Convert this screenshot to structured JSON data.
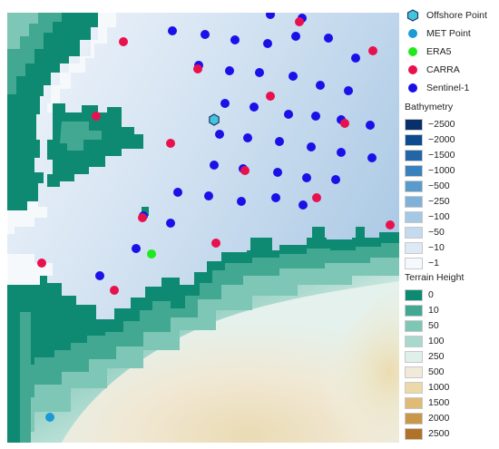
{
  "map": {
    "colors": {
      "land_low": "#0f8a72",
      "land_10": "#43a892",
      "land_50": "#7ec6b6",
      "sea_shallow": "#eef4fb",
      "sea_mid": "#c3d8ed",
      "sea_deep": "#a9c8e4",
      "sand": "#efe3c4"
    },
    "markers": {
      "sentinel1": {
        "color": "#1a10e8",
        "points": [
          [
            290,
            2
          ],
          [
            325,
            6
          ],
          [
            182,
            20
          ],
          [
            218,
            24
          ],
          [
            251,
            30
          ],
          [
            287,
            34
          ],
          [
            318,
            26
          ],
          [
            354,
            28
          ],
          [
            384,
            50
          ],
          [
            211,
            58
          ],
          [
            245,
            64
          ],
          [
            278,
            66
          ],
          [
            315,
            70
          ],
          [
            345,
            80
          ],
          [
            376,
            86
          ],
          [
            240,
            100
          ],
          [
            272,
            104
          ],
          [
            310,
            112
          ],
          [
            340,
            114
          ],
          [
            368,
            118
          ],
          [
            400,
            124
          ],
          [
            234,
            134
          ],
          [
            265,
            138
          ],
          [
            300,
            142
          ],
          [
            335,
            148
          ],
          [
            368,
            154
          ],
          [
            402,
            160
          ],
          [
            228,
            168
          ],
          [
            260,
            172
          ],
          [
            298,
            176
          ],
          [
            330,
            182
          ],
          [
            362,
            184
          ],
          [
            188,
            198
          ],
          [
            222,
            202
          ],
          [
            258,
            208
          ],
          [
            296,
            204
          ],
          [
            326,
            212
          ],
          [
            150,
            224
          ],
          [
            180,
            232
          ],
          [
            142,
            260
          ],
          [
            102,
            290
          ]
        ]
      },
      "carra": {
        "color": "#e8114e",
        "points": [
          [
            128,
            32
          ],
          [
            322,
            10
          ],
          [
            403,
            42
          ],
          [
            210,
            62
          ],
          [
            290,
            92
          ],
          [
            98,
            114
          ],
          [
            372,
            122
          ],
          [
            180,
            144
          ],
          [
            262,
            174
          ],
          [
            341,
            204
          ],
          [
            149,
            226
          ],
          [
            422,
            234
          ],
          [
            230,
            254
          ],
          [
            38,
            276
          ],
          [
            118,
            306
          ]
        ]
      },
      "era5": {
        "color": "#20e81c",
        "points": [
          [
            159,
            266
          ]
        ]
      },
      "met": {
        "color": "#1b9ad6",
        "points": [
          [
            47,
            446
          ]
        ]
      },
      "offshore": {
        "color": "#44c4dc",
        "points": [
          [
            228,
            118
          ]
        ]
      }
    }
  },
  "legend": {
    "points": [
      {
        "key": "offshore",
        "label": "Offshore Point",
        "color": "#44c4dc",
        "shape": "hexagon"
      },
      {
        "key": "met",
        "label": "MET Point",
        "color": "#1b9ad6",
        "shape": "circle"
      },
      {
        "key": "era5",
        "label": "ERA5",
        "color": "#20e81c",
        "shape": "circle"
      },
      {
        "key": "carra",
        "label": "CARRA",
        "color": "#e8114e",
        "shape": "circle"
      },
      {
        "key": "sentinel1",
        "label": "Sentinel-1",
        "color": "#1a10e8",
        "shape": "circle"
      }
    ],
    "bathymetry": {
      "title": "Bathymetry",
      "levels": [
        {
          "label": "−2500",
          "color": "#08306b"
        },
        {
          "label": "−2000",
          "color": "#0d4a8f"
        },
        {
          "label": "−1500",
          "color": "#2366a8"
        },
        {
          "label": "−1000",
          "color": "#3a82bd"
        },
        {
          "label": "−500",
          "color": "#5b9bcc"
        },
        {
          "label": "−250",
          "color": "#80b2d9"
        },
        {
          "label": "−100",
          "color": "#a5c8e4"
        },
        {
          "label": "−50",
          "color": "#c5daee"
        },
        {
          "label": "−10",
          "color": "#dde9f5"
        },
        {
          "label": "−1",
          "color": "#f5f8fc"
        }
      ]
    },
    "terrain": {
      "title": "Terrain Height",
      "levels": [
        {
          "label": "0",
          "color": "#0f8a72"
        },
        {
          "label": "10",
          "color": "#43a892"
        },
        {
          "label": "50",
          "color": "#7ec6b6"
        },
        {
          "label": "100",
          "color": "#a9d8cc"
        },
        {
          "label": "250",
          "color": "#dff0ea"
        },
        {
          "label": "500",
          "color": "#f2ead8"
        },
        {
          "label": "1000",
          "color": "#ecd9a8"
        },
        {
          "label": "1500",
          "color": "#dfbb76"
        },
        {
          "label": "2000",
          "color": "#c9974a"
        },
        {
          "label": "2500",
          "color": "#b07226"
        }
      ]
    }
  }
}
